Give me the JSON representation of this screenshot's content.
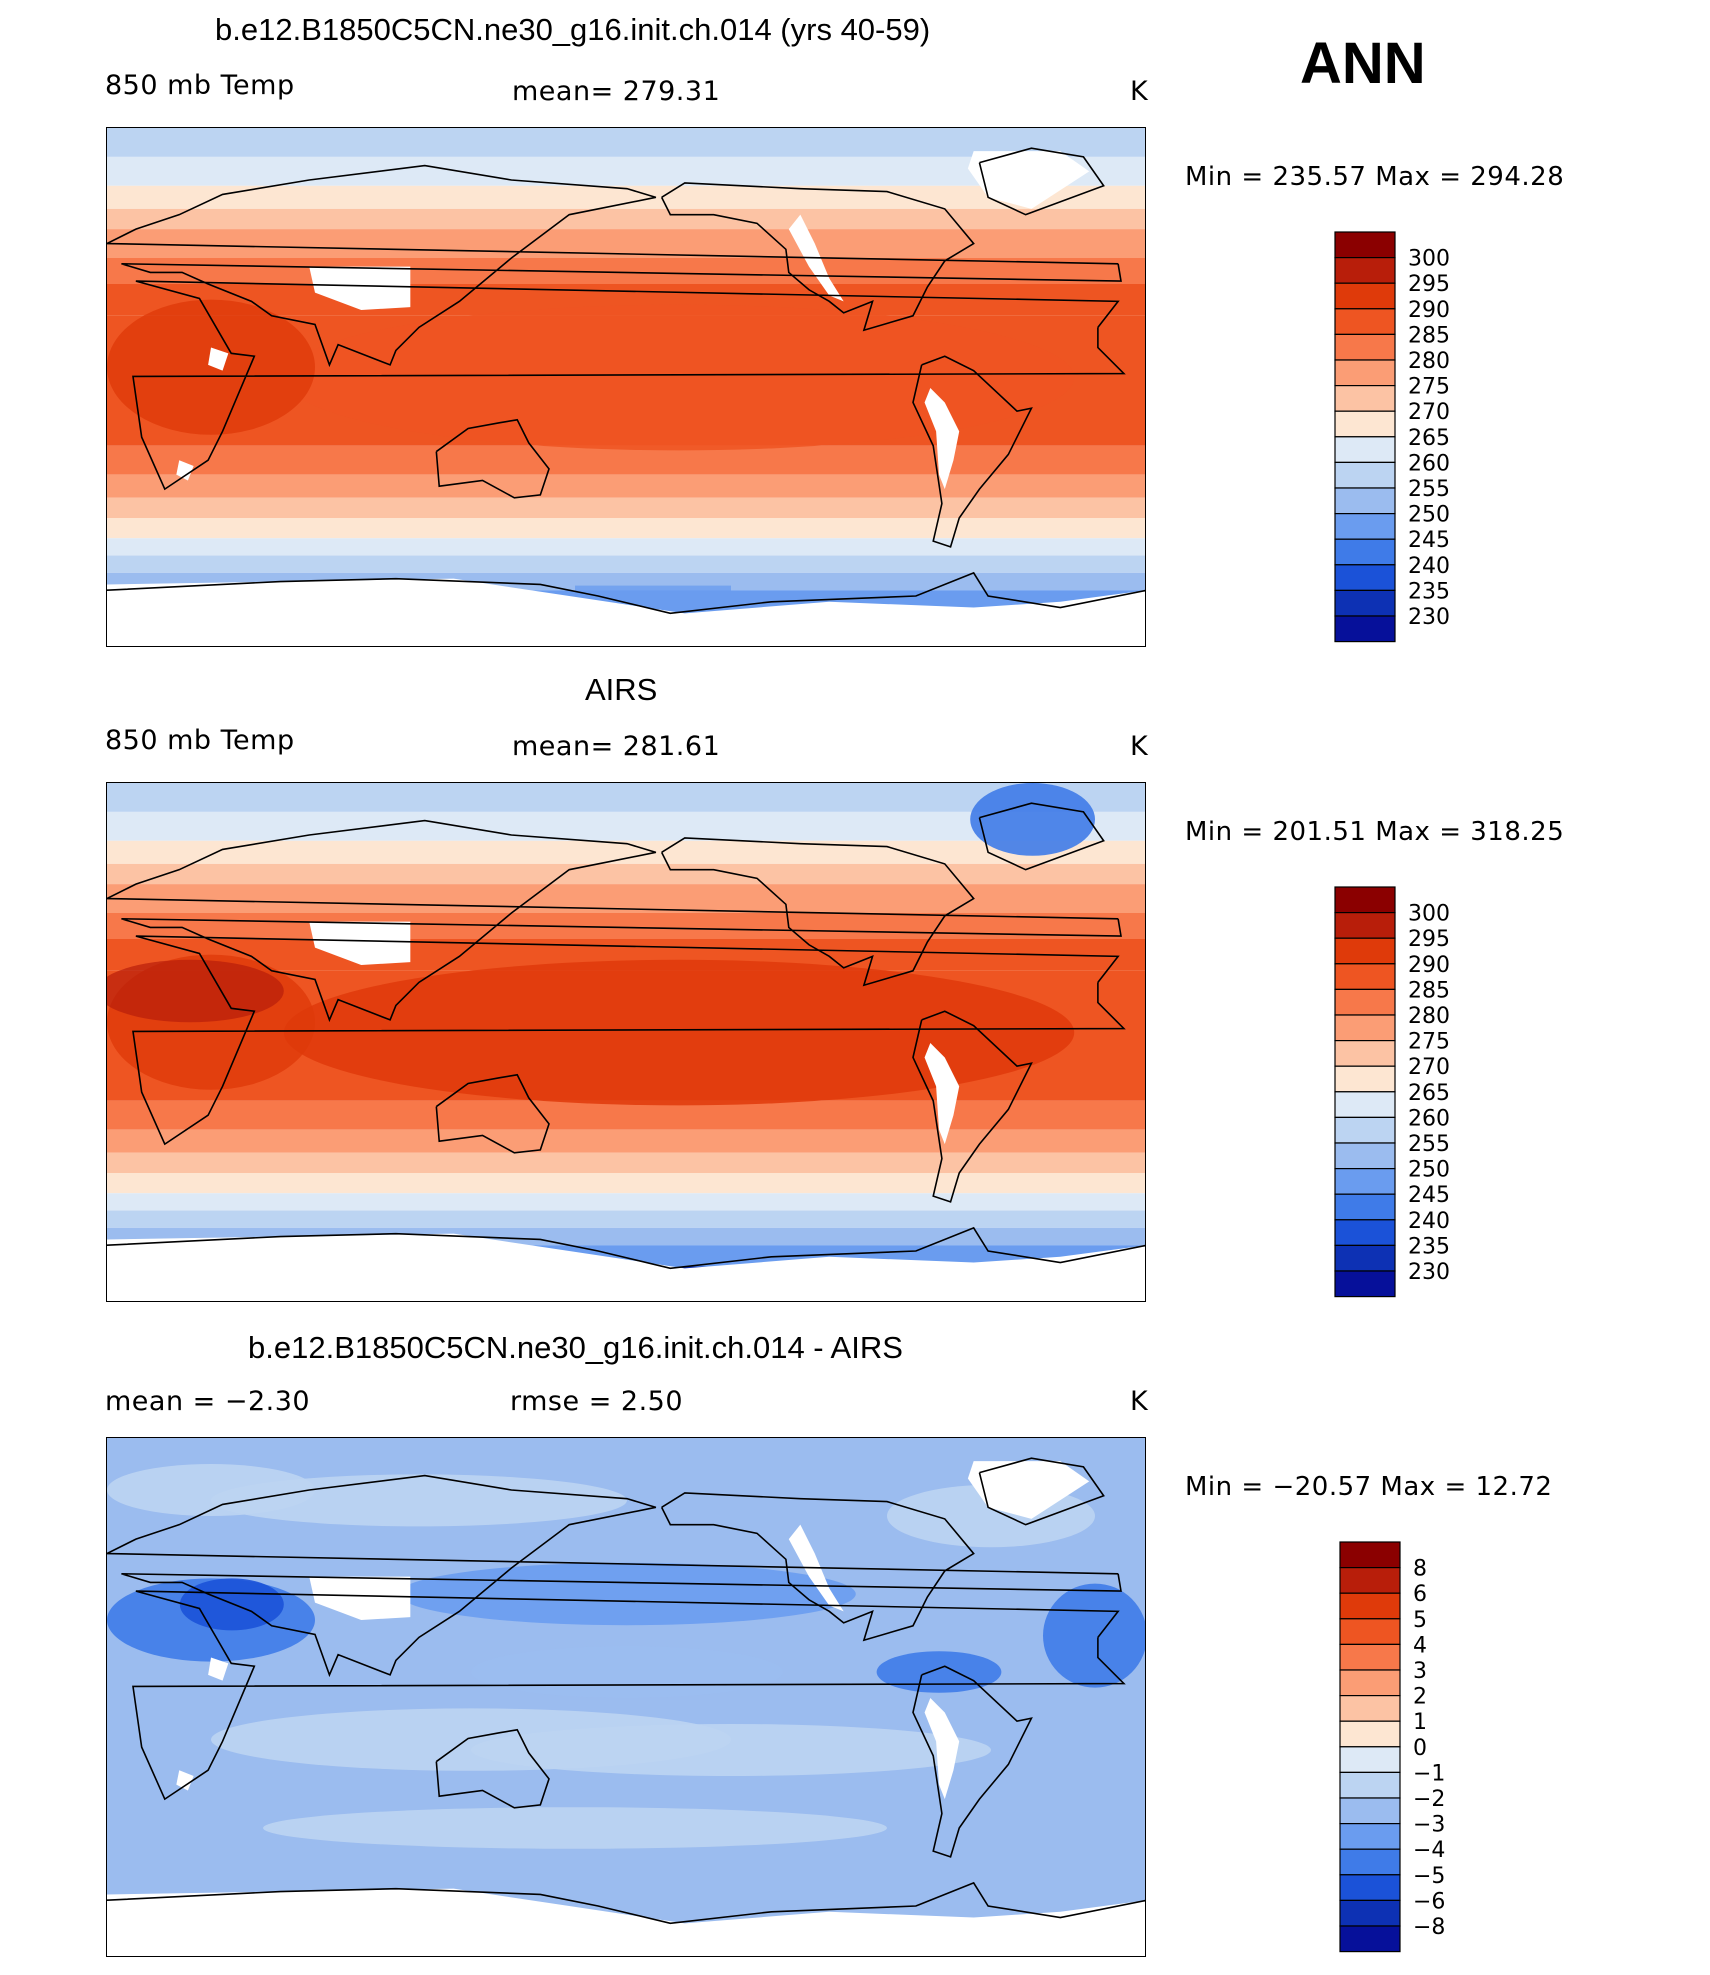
{
  "season": "ANN",
  "panels": [
    {
      "title": "b.e12.B1850C5CN.ne30_g16.init.ch.014 (yrs 40-59)",
      "left_label": "850 mb Temp",
      "center_label": "mean=  279.31",
      "right_label": "K",
      "minmax": "Min  =  235.57  Max  =  294.28",
      "scale": "abs"
    },
    {
      "title": "AIRS",
      "left_label": "850 mb Temp",
      "center_label": "mean=  281.61",
      "right_label": "K",
      "minmax": "Min  =  201.51  Max  =  318.25",
      "scale": "abs"
    },
    {
      "title": "b.e12.B1850C5CN.ne30_g16.init.ch.014 - AIRS",
      "left_label": "mean  =     −2.30",
      "center_label": "rmse  =      2.50",
      "right_label": "K",
      "minmax": "Min  =  −20.57  Max  =     12.72",
      "scale": "diff"
    }
  ],
  "colorbars": {
    "abs": {
      "labels": [
        "300",
        "295",
        "290",
        "285",
        "280",
        "275",
        "270",
        "265",
        "260",
        "255",
        "250",
        "245",
        "240",
        "235",
        "230"
      ],
      "colors": [
        "#8b0000",
        "#b81e0a",
        "#df3a0a",
        "#ee5522",
        "#f7784a",
        "#fb9d75",
        "#fcc3a4",
        "#fde6d2",
        "#dde9f6",
        "#bcd4f2",
        "#9bbcef",
        "#6a9cef",
        "#3f7be8",
        "#1b52d8",
        "#0d31b4",
        "#06109a"
      ]
    },
    "diff": {
      "labels": [
        "8",
        "6",
        "5",
        "4",
        "3",
        "2",
        "1",
        "0",
        "−1",
        "−2",
        "−3",
        "−4",
        "−5",
        "−6",
        "−8"
      ],
      "colors": [
        "#8b0000",
        "#b81e0a",
        "#df3a0a",
        "#ee5522",
        "#f7784a",
        "#fb9d75",
        "#fcc3a4",
        "#fde6d2",
        "#dde9f6",
        "#bcd4f2",
        "#9bbcef",
        "#6a9cef",
        "#3f7be8",
        "#1b52d8",
        "#0d31b4",
        "#06109a"
      ]
    }
  }
}
